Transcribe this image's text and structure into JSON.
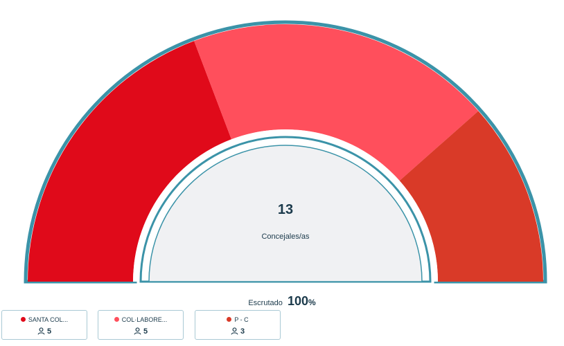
{
  "chart_data": {
    "type": "pie",
    "layout": "semicircle",
    "total": "13",
    "total_label": "Concejales/as",
    "series": [
      {
        "name": "SANTA COL...",
        "value": 5,
        "color": "#e00a1a"
      },
      {
        "name": "COL·LABORE...",
        "value": 5,
        "color": "#ff4f5c"
      },
      {
        "name": "P - C",
        "value": 3,
        "color": "#d93a28"
      }
    ]
  },
  "scrutiny": {
    "label": "Escrutado",
    "value": "100",
    "unit": "%"
  },
  "colors": {
    "ring": "#3b93a8",
    "center_fill": "#f0f1f3",
    "text": "#1b3a4b"
  },
  "legend_icon": "person-icon"
}
